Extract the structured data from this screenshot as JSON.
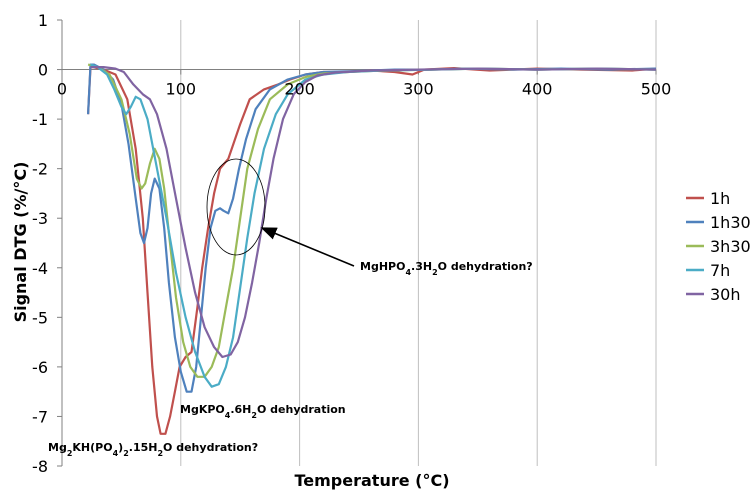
{
  "chart_data": {
    "type": "line",
    "title": "",
    "xlabel": "Temperature (°C)",
    "ylabel": "Signal DTG (%/°C)",
    "xlim": [
      0,
      500
    ],
    "ylim": [
      -8,
      1
    ],
    "x_ticks": [
      0,
      100,
      200,
      300,
      400,
      500
    ],
    "y_ticks": [
      1,
      0,
      -1,
      -2,
      -3,
      -4,
      -5,
      -6,
      -7,
      -8
    ],
    "grid": "vertical",
    "legend_position": "right",
    "series": [
      {
        "name": "1h",
        "color": "#c0504d",
        "points": [
          [
            22,
            -0.9
          ],
          [
            24,
            0.05
          ],
          [
            26,
            0.05
          ],
          [
            35,
            0
          ],
          [
            45,
            -0.1
          ],
          [
            55,
            -0.6
          ],
          [
            62,
            -1.6
          ],
          [
            68,
            -3.0
          ],
          [
            72,
            -4.5
          ],
          [
            76,
            -6.0
          ],
          [
            80,
            -7.0
          ],
          [
            83,
            -7.35
          ],
          [
            87,
            -7.35
          ],
          [
            91,
            -7.0
          ],
          [
            95,
            -6.5
          ],
          [
            99,
            -6.0
          ],
          [
            104,
            -5.8
          ],
          [
            109,
            -5.7
          ],
          [
            114,
            -4.8
          ],
          [
            118,
            -4.0
          ],
          [
            123,
            -3.2
          ],
          [
            128,
            -2.5
          ],
          [
            133,
            -2.0
          ],
          [
            140,
            -1.8
          ],
          [
            150,
            -1.1
          ],
          [
            158,
            -0.6
          ],
          [
            170,
            -0.4
          ],
          [
            182,
            -0.3
          ],
          [
            192,
            -0.2
          ],
          [
            205,
            -0.1
          ],
          [
            220,
            -0.05
          ],
          [
            240,
            -0.05
          ],
          [
            260,
            -0.02
          ],
          [
            280,
            -0.05
          ],
          [
            295,
            -0.1
          ],
          [
            305,
            0
          ],
          [
            330,
            0.03
          ],
          [
            360,
            -0.02
          ],
          [
            400,
            0.02
          ],
          [
            440,
            0
          ],
          [
            480,
            -0.02
          ],
          [
            500,
            0.02
          ]
        ]
      },
      {
        "name": "1h30",
        "color": "#4f81bd",
        "points": [
          [
            22,
            -0.9
          ],
          [
            24,
            0.1
          ],
          [
            27,
            0.1
          ],
          [
            35,
            0
          ],
          [
            43,
            -0.2
          ],
          [
            50,
            -0.7
          ],
          [
            56,
            -1.5
          ],
          [
            62,
            -2.6
          ],
          [
            66,
            -3.3
          ],
          [
            69,
            -3.5
          ],
          [
            72,
            -3.2
          ],
          [
            75,
            -2.5
          ],
          [
            78,
            -2.2
          ],
          [
            82,
            -2.4
          ],
          [
            86,
            -3.2
          ],
          [
            90,
            -4.3
          ],
          [
            95,
            -5.4
          ],
          [
            100,
            -6.1
          ],
          [
            105,
            -6.5
          ],
          [
            109,
            -6.5
          ],
          [
            113,
            -6.0
          ],
          [
            117,
            -5.0
          ],
          [
            121,
            -4.0
          ],
          [
            125,
            -3.2
          ],
          [
            129,
            -2.85
          ],
          [
            133,
            -2.8
          ],
          [
            136,
            -2.85
          ],
          [
            140,
            -2.9
          ],
          [
            144,
            -2.6
          ],
          [
            149,
            -2.0
          ],
          [
            155,
            -1.4
          ],
          [
            163,
            -0.8
          ],
          [
            175,
            -0.4
          ],
          [
            190,
            -0.2
          ],
          [
            205,
            -0.1
          ],
          [
            220,
            -0.05
          ],
          [
            250,
            -0.03
          ],
          [
            280,
            0
          ],
          [
            310,
            0
          ],
          [
            340,
            0.02
          ],
          [
            380,
            0
          ],
          [
            420,
            0.02
          ],
          [
            460,
            0
          ],
          [
            500,
            0.02
          ]
        ]
      },
      {
        "name": "3h30",
        "color": "#9bbb59",
        "points": [
          [
            22,
            0.1
          ],
          [
            30,
            0.05
          ],
          [
            40,
            -0.1
          ],
          [
            50,
            -0.6
          ],
          [
            57,
            -1.3
          ],
          [
            63,
            -2.2
          ],
          [
            67,
            -2.4
          ],
          [
            70,
            -2.3
          ],
          [
            74,
            -1.9
          ],
          [
            78,
            -1.6
          ],
          [
            82,
            -1.8
          ],
          [
            86,
            -2.4
          ],
          [
            90,
            -3.3
          ],
          [
            96,
            -4.6
          ],
          [
            102,
            -5.5
          ],
          [
            108,
            -6.0
          ],
          [
            114,
            -6.2
          ],
          [
            120,
            -6.2
          ],
          [
            126,
            -6.0
          ],
          [
            132,
            -5.6
          ],
          [
            138,
            -4.8
          ],
          [
            144,
            -4.0
          ],
          [
            150,
            -3.0
          ],
          [
            156,
            -2.0
          ],
          [
            165,
            -1.2
          ],
          [
            175,
            -0.6
          ],
          [
            190,
            -0.3
          ],
          [
            205,
            -0.15
          ],
          [
            220,
            -0.08
          ],
          [
            240,
            -0.05
          ],
          [
            270,
            -0.02
          ],
          [
            310,
            0
          ],
          [
            350,
            0.02
          ],
          [
            400,
            0
          ],
          [
            450,
            0.02
          ],
          [
            500,
            0
          ]
        ]
      },
      {
        "name": "7h",
        "color": "#4bacc6",
        "points": [
          [
            24,
            0.1
          ],
          [
            30,
            0.05
          ],
          [
            38,
            -0.1
          ],
          [
            44,
            -0.4
          ],
          [
            50,
            -0.75
          ],
          [
            54,
            -0.9
          ],
          [
            58,
            -0.75
          ],
          [
            62,
            -0.55
          ],
          [
            66,
            -0.6
          ],
          [
            72,
            -1.0
          ],
          [
            80,
            -2.0
          ],
          [
            88,
            -3.0
          ],
          [
            96,
            -4.1
          ],
          [
            104,
            -5.0
          ],
          [
            112,
            -5.7
          ],
          [
            120,
            -6.2
          ],
          [
            126,
            -6.4
          ],
          [
            132,
            -6.35
          ],
          [
            138,
            -6.0
          ],
          [
            144,
            -5.4
          ],
          [
            150,
            -4.4
          ],
          [
            156,
            -3.4
          ],
          [
            162,
            -2.5
          ],
          [
            170,
            -1.6
          ],
          [
            180,
            -0.9
          ],
          [
            190,
            -0.5
          ],
          [
            205,
            -0.2
          ],
          [
            220,
            -0.1
          ],
          [
            240,
            -0.05
          ],
          [
            270,
            -0.02
          ],
          [
            310,
            0
          ],
          [
            350,
            0.02
          ],
          [
            400,
            0
          ],
          [
            450,
            0.02
          ],
          [
            500,
            0
          ]
        ]
      },
      {
        "name": "30h",
        "color": "#8064a2",
        "points": [
          [
            24,
            0.05
          ],
          [
            35,
            0.05
          ],
          [
            45,
            0.02
          ],
          [
            52,
            -0.05
          ],
          [
            60,
            -0.3
          ],
          [
            68,
            -0.5
          ],
          [
            74,
            -0.6
          ],
          [
            80,
            -0.9
          ],
          [
            88,
            -1.6
          ],
          [
            96,
            -2.6
          ],
          [
            104,
            -3.6
          ],
          [
            112,
            -4.5
          ],
          [
            120,
            -5.2
          ],
          [
            128,
            -5.6
          ],
          [
            135,
            -5.8
          ],
          [
            142,
            -5.75
          ],
          [
            148,
            -5.5
          ],
          [
            154,
            -5.0
          ],
          [
            160,
            -4.3
          ],
          [
            166,
            -3.5
          ],
          [
            172,
            -2.6
          ],
          [
            178,
            -1.8
          ],
          [
            186,
            -1.0
          ],
          [
            195,
            -0.5
          ],
          [
            205,
            -0.25
          ],
          [
            215,
            -0.12
          ],
          [
            230,
            -0.06
          ],
          [
            260,
            -0.02
          ],
          [
            300,
            0
          ],
          [
            350,
            0.02
          ],
          [
            400,
            0
          ],
          [
            450,
            0.02
          ],
          [
            500,
            0
          ]
        ]
      }
    ],
    "annotations": [
      {
        "id": "mghpo4",
        "pre": "MgHPO",
        "sub1": "4",
        "mid": ".3H",
        "sub2": "2",
        "post": "O dehydration?"
      },
      {
        "id": "mgkpo4",
        "pre": "MgKPO",
        "sub1": "4",
        "mid": ".6H",
        "sub2": "2",
        "post": "O dehydration"
      },
      {
        "id": "mg2kh",
        "pre": "Mg",
        "sub1": "2",
        "mid": "KH(PO",
        "sub2": "4",
        "mid2": ")",
        "sub3": "2",
        "mid3": ".15H",
        "sub4": "2",
        "post": "O dehydration?"
      }
    ]
  }
}
